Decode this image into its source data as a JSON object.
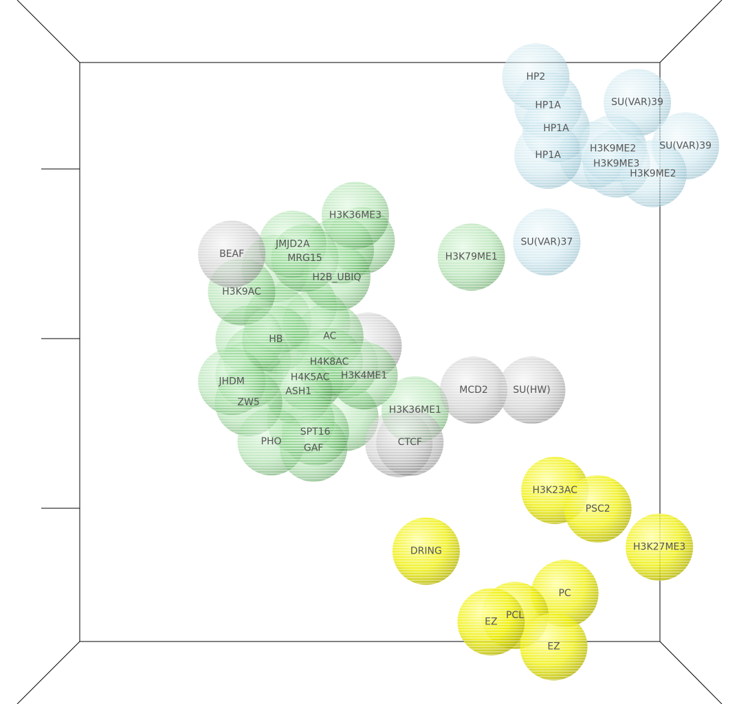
{
  "chart_data": {
    "type": "scatter",
    "title": "",
    "xlabel": "",
    "ylabel": "",
    "xlim": [
      0,
      1
    ],
    "ylim": [
      0,
      1
    ],
    "grid": false,
    "colors": {
      "green": "#5fbf5f",
      "grey": "#a8a8a8",
      "blue": "#a9d3e0",
      "yellow": "#f0f000"
    },
    "points": [
      {
        "label": "HP2",
        "group": "blue",
        "x": 0.786,
        "y": 0.975
      },
      {
        "label": "HP1A",
        "group": "blue",
        "x": 0.807,
        "y": 0.926
      },
      {
        "label": "HP1A",
        "group": "blue",
        "x": 0.821,
        "y": 0.886
      },
      {
        "label": "HP1A",
        "group": "blue",
        "x": 0.807,
        "y": 0.84
      },
      {
        "label": "SU(VAR)39",
        "group": "blue",
        "x": 0.961,
        "y": 0.931
      },
      {
        "label": "SU(VAR)39",
        "group": "blue",
        "x": 1.044,
        "y": 0.856
      },
      {
        "label": "H3K9ME2",
        "group": "blue",
        "x": 0.919,
        "y": 0.851
      },
      {
        "label": "H3K9ME3",
        "group": "blue",
        "x": 0.925,
        "y": 0.825
      },
      {
        "label": "H3K9ME2",
        "group": "blue",
        "x": 0.988,
        "y": 0.808
      },
      {
        "label": "SU(VAR)37",
        "group": "blue",
        "x": 0.805,
        "y": 0.69
      },
      {
        "label": "H3K36ME3",
        "group": "green",
        "x": 0.475,
        "y": 0.736
      },
      {
        "label": "JMJD2A",
        "group": "green",
        "x": 0.367,
        "y": 0.686
      },
      {
        "label": "MRG15",
        "group": "green",
        "x": 0.388,
        "y": 0.662
      },
      {
        "label": "H2B_UBIQ",
        "group": "green",
        "x": 0.443,
        "y": 0.629
      },
      {
        "label": "H3K9AC",
        "group": "green",
        "x": 0.279,
        "y": 0.604
      },
      {
        "label": "H3K79ME1",
        "group": "green",
        "x": 0.675,
        "y": 0.664
      },
      {
        "label": "HB",
        "group": "green",
        "x": 0.338,
        "y": 0.522
      },
      {
        "label": "AC",
        "group": "green",
        "x": 0.431,
        "y": 0.527
      },
      {
        "label": "H4K8AC",
        "group": "green",
        "x": 0.43,
        "y": 0.483
      },
      {
        "label": "H4K5AC",
        "group": "green",
        "x": 0.397,
        "y": 0.456
      },
      {
        "label": "H3K4ME1",
        "group": "green",
        "x": 0.49,
        "y": 0.459
      },
      {
        "label": "JHDM",
        "group": "green",
        "x": 0.262,
        "y": 0.449
      },
      {
        "label": "ASH1",
        "group": "green",
        "x": 0.377,
        "y": 0.432
      },
      {
        "label": "ZW5",
        "group": "green",
        "x": 0.291,
        "y": 0.413
      },
      {
        "label": "H3K36ME1",
        "group": "green",
        "x": 0.578,
        "y": 0.4
      },
      {
        "label": "SPT16",
        "group": "green",
        "x": 0.406,
        "y": 0.362
      },
      {
        "label": "PHO",
        "group": "green",
        "x": 0.33,
        "y": 0.345
      },
      {
        "label": "GAF",
        "group": "green",
        "x": 0.403,
        "y": 0.334
      },
      {
        "label": "BEAF",
        "group": "grey",
        "x": 0.262,
        "y": 0.669
      },
      {
        "label": "MCD2",
        "group": "grey",
        "x": 0.679,
        "y": 0.434
      },
      {
        "label": "SU(HW)",
        "group": "grey",
        "x": 0.779,
        "y": 0.434
      },
      {
        "label": "CTCF",
        "group": "grey",
        "x": 0.569,
        "y": 0.344
      },
      {
        "label": "H3K23AC",
        "group": "yellow",
        "x": 0.819,
        "y": 0.261
      },
      {
        "label": "PSC2",
        "group": "yellow",
        "x": 0.893,
        "y": 0.229
      },
      {
        "label": "H3K27ME3",
        "group": "yellow",
        "x": 0.999,
        "y": 0.163
      },
      {
        "label": "DRING",
        "group": "yellow",
        "x": 0.597,
        "y": 0.156
      },
      {
        "label": "PC",
        "group": "yellow",
        "x": 0.836,
        "y": 0.083
      },
      {
        "label": "PCL",
        "group": "yellow",
        "x": 0.75,
        "y": 0.045
      },
      {
        "label": "EZ",
        "group": "yellow",
        "x": 0.709,
        "y": 0.034
      },
      {
        "label": "EZ",
        "group": "yellow",
        "x": 0.817,
        "y": -0.009
      }
    ],
    "extra_spheres": [
      {
        "group": "green",
        "x": 0.485,
        "y": 0.692
      },
      {
        "group": "green",
        "x": 0.449,
        "y": 0.676
      },
      {
        "group": "green",
        "x": 0.337,
        "y": 0.644
      },
      {
        "group": "green",
        "x": 0.385,
        "y": 0.58
      },
      {
        "group": "green",
        "x": 0.341,
        "y": 0.555
      },
      {
        "group": "green",
        "x": 0.292,
        "y": 0.522
      },
      {
        "group": "green",
        "x": 0.306,
        "y": 0.488
      },
      {
        "group": "green",
        "x": 0.408,
        "y": 0.55
      },
      {
        "group": "green",
        "x": 0.292,
        "y": 0.461
      },
      {
        "group": "green",
        "x": 0.456,
        "y": 0.478
      },
      {
        "group": "green",
        "x": 0.457,
        "y": 0.387
      },
      {
        "group": "green",
        "x": 0.381,
        "y": 0.381
      },
      {
        "group": "grey",
        "x": 0.497,
        "y": 0.51
      },
      {
        "group": "grey",
        "x": 0.55,
        "y": 0.342
      },
      {
        "group": "blue",
        "x": 0.884,
        "y": 0.84
      }
    ]
  }
}
